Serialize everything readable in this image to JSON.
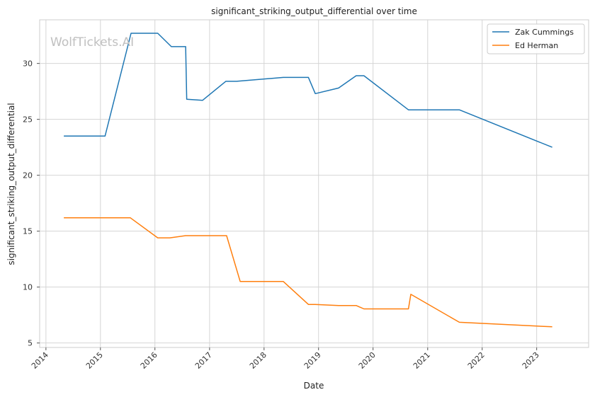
{
  "chart_data": {
    "type": "line",
    "title": "significant_striking_output_differential over time",
    "xlabel": "Date",
    "ylabel": "significant_striking_output_differential",
    "watermark": "WolfTickets.AI",
    "x_ticks": [
      "2014",
      "2015",
      "2016",
      "2017",
      "2018",
      "2019",
      "2020",
      "2021",
      "2022",
      "2023"
    ],
    "y_ticks": [
      5,
      10,
      15,
      20,
      25,
      30
    ],
    "xlim": [
      "2013-11-20",
      "2023-12-15"
    ],
    "ylim": [
      4.6,
      33.9
    ],
    "grid": true,
    "legend_position": "top-right",
    "series": [
      {
        "name": "Zak Cummings",
        "color": "#1f77b4",
        "points": [
          [
            "2014-05-01",
            23.5
          ],
          [
            "2015-02-01",
            23.5
          ],
          [
            "2015-07-25",
            32.7
          ],
          [
            "2016-01-20",
            32.7
          ],
          [
            "2016-04-20",
            31.5
          ],
          [
            "2016-07-25",
            31.5
          ],
          [
            "2016-08-01",
            26.8
          ],
          [
            "2016-11-15",
            26.7
          ],
          [
            "2017-04-20",
            28.4
          ],
          [
            "2017-07-01",
            28.4
          ],
          [
            "2018-05-10",
            28.75
          ],
          [
            "2018-10-25",
            28.75
          ],
          [
            "2018-12-10",
            27.3
          ],
          [
            "2019-05-15",
            27.8
          ],
          [
            "2019-09-10",
            28.9
          ],
          [
            "2019-11-01",
            28.9
          ],
          [
            "2020-08-25",
            25.85
          ],
          [
            "2021-08-01",
            25.85
          ],
          [
            "2023-04-15",
            22.5
          ]
        ]
      },
      {
        "name": "Ed Herman",
        "color": "#ff7f0e",
        "points": [
          [
            "2014-05-01",
            16.2
          ],
          [
            "2015-07-20",
            16.2
          ],
          [
            "2016-01-20",
            14.4
          ],
          [
            "2016-04-10",
            14.4
          ],
          [
            "2016-07-25",
            14.6
          ],
          [
            "2017-04-25",
            14.6
          ],
          [
            "2017-07-25",
            10.5
          ],
          [
            "2018-05-10",
            10.5
          ],
          [
            "2018-10-25",
            8.45
          ],
          [
            "2018-12-10",
            8.45
          ],
          [
            "2019-05-15",
            8.35
          ],
          [
            "2019-09-10",
            8.35
          ],
          [
            "2019-11-01",
            8.05
          ],
          [
            "2020-08-25",
            8.05
          ],
          [
            "2020-09-10",
            9.35
          ],
          [
            "2021-08-01",
            6.85
          ],
          [
            "2023-04-15",
            6.45
          ]
        ]
      }
    ]
  }
}
